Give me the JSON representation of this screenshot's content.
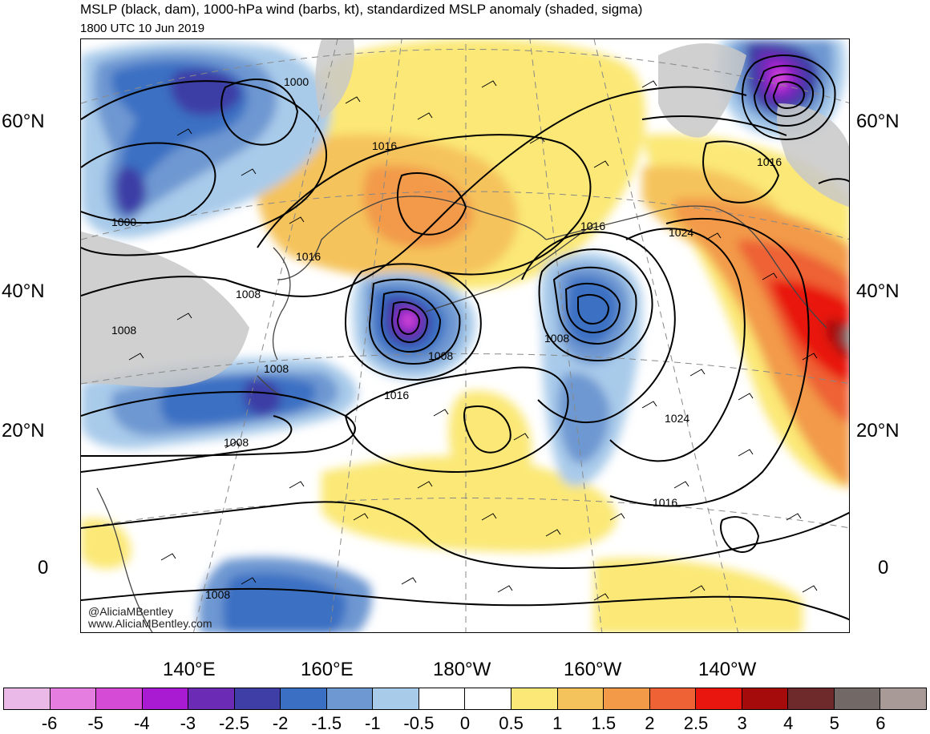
{
  "header": {
    "title": "MSLP (black, dam), 1000-hPa wind (barbs, kt), standardized MSLP anomaly (shaded, sigma)",
    "subtitle": "1800 UTC 10 Jun 2019"
  },
  "axes": {
    "lat_labels": [
      "60°N",
      "40°N",
      "20°N",
      "0"
    ],
    "lon_labels": [
      "140°E",
      "160°E",
      "180°W",
      "160°W",
      "140°W"
    ]
  },
  "isobar_labels": [
    "1000",
    "1000",
    "1016",
    "1016",
    "1008",
    "1008",
    "1008",
    "1008",
    "1016",
    "1008",
    "1008",
    "1016",
    "1024",
    "1008",
    "1024",
    "1016",
    "1016",
    "1008"
  ],
  "credits": {
    "handle": "@AliciaMBentley",
    "site": "www.AliciaMBentley.com"
  },
  "colorbar": {
    "colors": [
      "#ebb9e8",
      "#e57de0",
      "#d64bd5",
      "#a81bd3",
      "#6b2bb5",
      "#3e3ea6",
      "#3a6fc3",
      "#6e98d2",
      "#a9cbea",
      "#ffffff",
      "#ffffff",
      "#fbe876",
      "#f5c35c",
      "#f29a48",
      "#ee6235",
      "#e8160f",
      "#a50b0b",
      "#6e2a2a",
      "#726865",
      "#a79a97"
    ],
    "labels": [
      "-6",
      "-5",
      "-4",
      "-3",
      "-2.5",
      "-2",
      "-1.5",
      "-1",
      "-0.5",
      "0",
      "0.5",
      "1",
      "1.5",
      "2",
      "2.5",
      "3",
      "4",
      "5",
      "6"
    ]
  },
  "colors": {
    "land": "#c8c8c8",
    "isobar": "#000000"
  }
}
